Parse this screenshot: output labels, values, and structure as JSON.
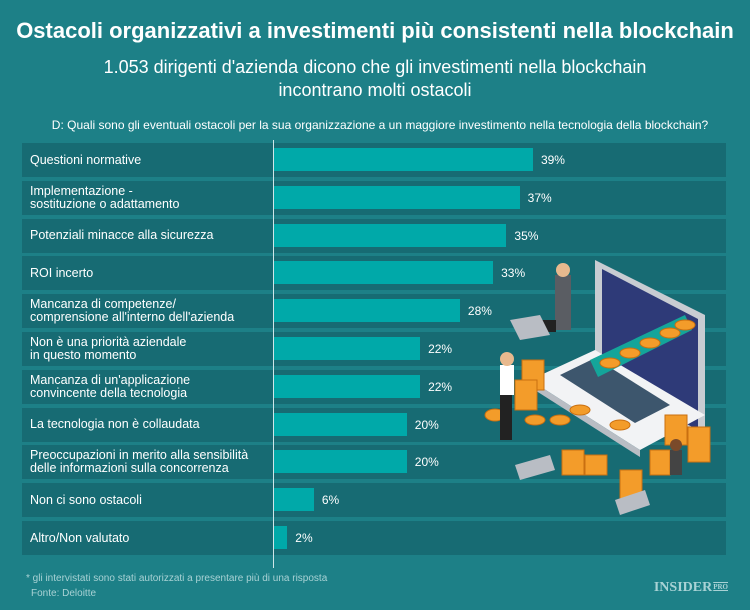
{
  "title": "Ostacoli organizzativi a investimenti più consistenti nella blockchain",
  "subtitle": "1.053 dirigenti d'azienda dicono che gli investimenti nella blockchain\nincontrano molti ostacoli",
  "question": "D: Quali sono gli eventuali ostacoli per la sua organizzazione a un maggiore investimento nella tecnologia della blockchain?",
  "footnote": "* gli intervistati sono stati autorizzati a presentare più di una risposta",
  "source": "Fonte: Deloitte",
  "logo": {
    "text": "INSIDER",
    "suffix": "PRO"
  },
  "colors": {
    "background": "#1d8087",
    "row": "#176b73",
    "bar": "#00a9a9"
  },
  "chart_data": {
    "type": "bar",
    "orientation": "horizontal",
    "categories": [
      "Questioni normative",
      "Implementazione -\nsostituzione o adattamento",
      "Potenziali minacce alla sicurezza",
      "ROI incerto",
      "Mancanza di competenze/\ncomprensione all'interno dell'azienda",
      "Non è una priorità aziendale\nin questo momento",
      "Mancanza di un'applicazione\nconvincente della tecnologia",
      "La tecnologia non è collaudata",
      "Preoccupazioni in merito alla sensibilità\ndelle informazioni sulla concorrenza",
      "Non ci sono ostacoli",
      "Altro/Non valutato"
    ],
    "values": [
      39,
      37,
      35,
      33,
      28,
      22,
      22,
      20,
      20,
      6,
      2
    ],
    "data_labels": [
      "39%",
      "37%",
      "35%",
      "33%",
      "28%",
      "22%",
      "22%",
      "20%",
      "20%",
      "6%",
      "2%"
    ],
    "unit": "%",
    "grid": false
  }
}
